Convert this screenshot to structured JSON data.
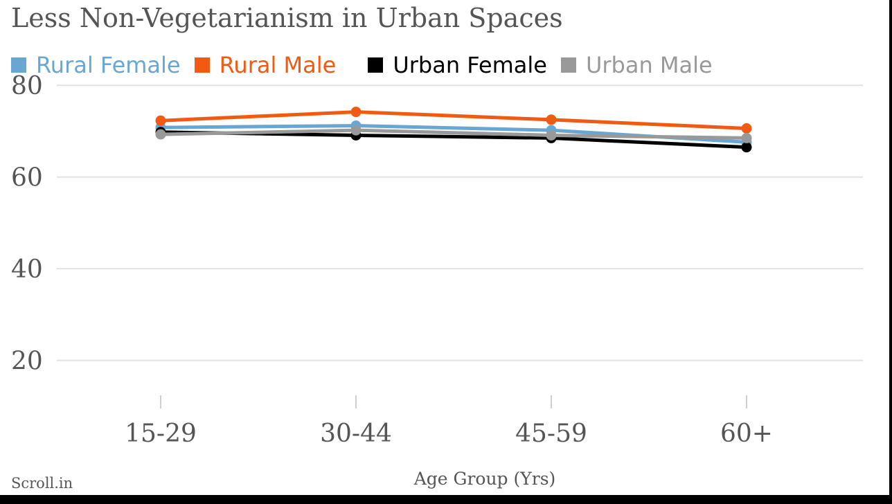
{
  "chart_data": {
    "type": "line",
    "title": "Less Non-Vegetarianism in Urban Spaces",
    "xlabel": "Age Group (Yrs)",
    "ylabel": "",
    "source": "Scroll.in",
    "categories": [
      "15-29",
      "30-44",
      "45-59",
      "60+"
    ],
    "yticks": [
      20,
      40,
      60,
      80
    ],
    "ylim": [
      13,
      82
    ],
    "grid": true,
    "legend_position": "top",
    "series": [
      {
        "name": "Rural Female",
        "color": "#6aa6d2",
        "values": [
          70.8,
          71.2,
          70.2,
          67.6
        ]
      },
      {
        "name": "Rural Male",
        "color": "#f25a12",
        "values": [
          72.3,
          74.2,
          72.5,
          70.6
        ]
      },
      {
        "name": "Urban Female",
        "color": "#000000",
        "values": [
          69.8,
          69.1,
          68.5,
          66.5
        ]
      },
      {
        "name": "Urban Male",
        "color": "#999999",
        "values": [
          69.3,
          70.2,
          69.1,
          68.5
        ]
      }
    ]
  }
}
